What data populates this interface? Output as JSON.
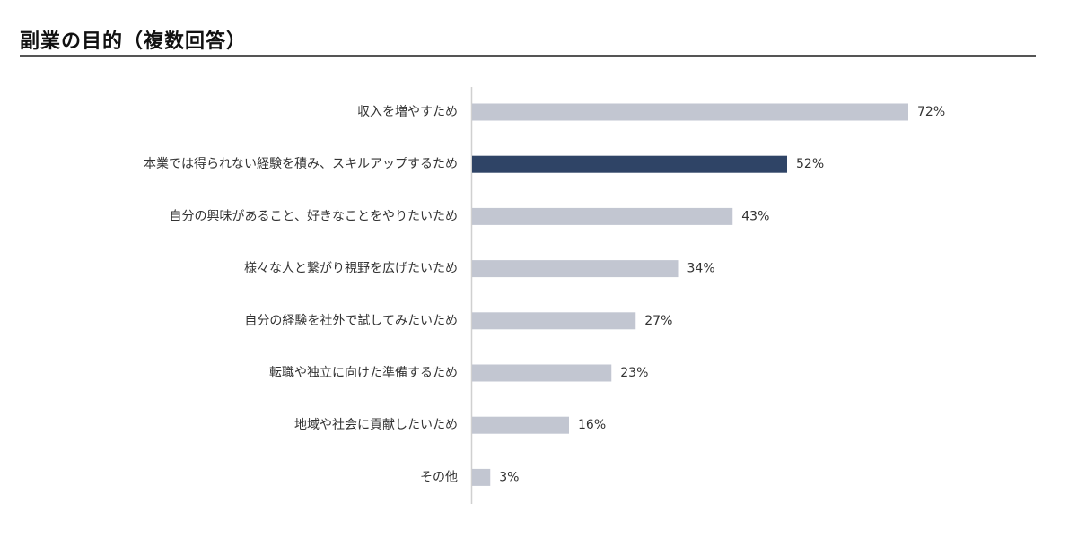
{
  "title": "副業の目的（複数回答）",
  "colors": {
    "bar": "#c2c6d1",
    "highlight": "#2f4466",
    "axis": "#d0d0d0",
    "rule": "#555555"
  },
  "chart_data": {
    "type": "bar",
    "orientation": "horizontal",
    "title": "副業の目的（複数回答）",
    "categories": [
      "収入を増やすため",
      "本業では得られない経験を積み、スキルアップするため",
      "自分の興味があること、好きなことをやりたいため",
      "様々な人と繋がり視野を広げたいため",
      "自分の経験を社外で試してみたいため",
      "転職や独立に向けた準備するため",
      "地域や社会に貢献したいため",
      "その他"
    ],
    "values": [
      72,
      52,
      43,
      34,
      27,
      23,
      16,
      3
    ],
    "value_labels": [
      "72%",
      "52%",
      "43%",
      "34%",
      "27%",
      "23%",
      "16%",
      "3%"
    ],
    "highlight_index": 1,
    "unit": "%",
    "xlim": [
      0,
      100
    ],
    "grid": false,
    "legend": "none"
  }
}
